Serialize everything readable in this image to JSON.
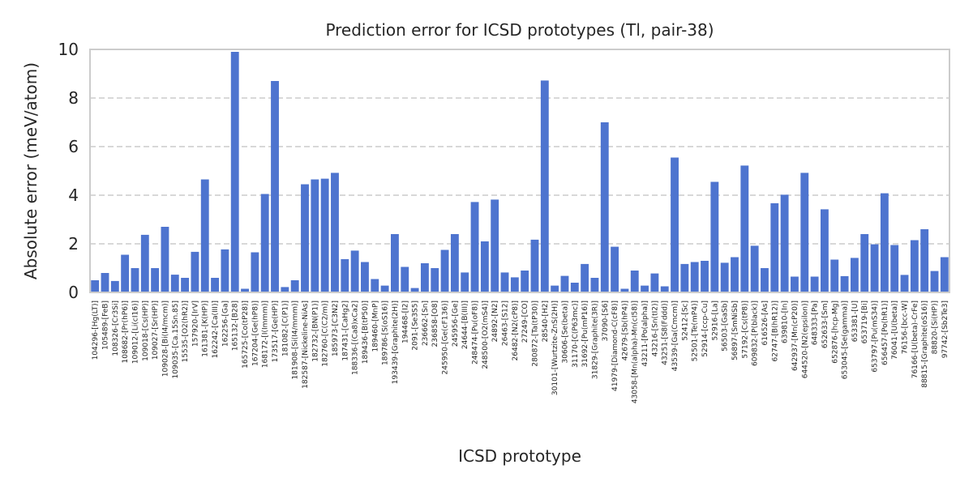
{
  "chart_data": {
    "type": "bar",
    "title": "Prediction error for ICSD prototypes (Tl, pair-38)",
    "xlabel": "ICSD prototype",
    "ylabel": "Absolute error (meV/atom)",
    "ylim": [
      0,
      10
    ],
    "yticks": [
      "0",
      "2",
      "4",
      "6",
      "8",
      "10"
    ],
    "grid": true,
    "bar_color": "#4e74cf",
    "categories": [
      "104296-[Hg(LT)]",
      "105489-[FeB]",
      "108326-[Cr3Si]",
      "108682-[Pr(hP6)]",
      "109012-[Li(cI16)]",
      "109018-[Cs(HP)]",
      "109027-[Sr(HP)]",
      "109028-[Bi(I4/mcm)]",
      "109035-[Ca.15Sn.85]",
      "15535-[O2(hR2)]",
      "157920-[IrV]",
      "161381-[K(HP)]",
      "162242-[Ca(III)]",
      "162256-[Ga]",
      "165132-[B28]",
      "165725-[Co(tP28)]",
      "167204-[Ge(hP8)]",
      "168172-[I(Immm)]",
      "173517-[Ge(HP)]",
      "181082-[C(P1)]",
      "181908-[Si(I4/mmm)]",
      "182587-[Nickeline-NiAs]",
      "182732-[BN(P1)]",
      "182760-[C(C2/m)]",
      "185973-[C3N2]",
      "187431-[CaHg2]",
      "188336-[(Ca8)xCa2]",
      "189436-[B(tP50)]",
      "189460-[MnP]",
      "189786-[S(oS16)]",
      "193439-[Graphite(2H)]",
      "194468-[I2]",
      "2091-[Se3S5]",
      "236662-[Sn]",
      "236858-[O8]",
      "245950-[Ge(cF136)]",
      "245956-[Ge]",
      "24644-[B(III)]",
      "248474-[Pu(oF8)]",
      "248500-[O2(mS4)]",
      "24892-[N2]",
      "26463-[S12]",
      "26482-[N2(cP8)]",
      "27249-[CO]",
      "280872-[Ta(tP30)]",
      "28540-[H2]",
      "30101-[Wurtzite-ZnS(2H)]",
      "30606-[Se(beta)]",
      "31170-[C(P63mc)]",
      "31692-[Pu(mP16)]",
      "31829-[Graphite(3R)]",
      "37090-[S6]",
      "41979-[Diamond-C(cF8)]",
      "42679-[Sb(hP4)]",
      "43058-[Mn(alpha)-Mn(cI58)]",
      "43211-[Po(alpha)]",
      "43216-[Sn(tI2)]",
      "43251-[S8(Fddd)]",
      "43539-[Ga(Cmcm)]",
      "52412-[Sc]",
      "52501-[Te(mP4)]",
      "52914-[ccp-Cu]",
      "52916-[La]",
      "56503-[GaSb]",
      "56897-[SmNiSb]",
      "57192-[Cs(tP8)]",
      "609832-[P(black)]",
      "616526-[As]",
      "62747-[B(hR12)]",
      "639810-[In]",
      "642937-[Mn(cP20)]",
      "644520-[N2(epsilon)]",
      "648333-[Pa]",
      "652633-[Sm]",
      "652876-[hcp-Mg]",
      "653045-[Se(gamma)]",
      "653381-[U]",
      "653719-[Bi]",
      "653797-[Pu(mS34)]",
      "656457-[Po(hR1)]",
      "76041-[U(beta)]",
      "76156-[bcc-W]",
      "76166-[U(beta)-CrFe]",
      "88815-[Graphite(oS16)]",
      "88820-[Si(HP)]",
      "97742-[Sb2Te3]"
    ],
    "values": [
      0.5,
      0.8,
      0.47,
      1.55,
      1.0,
      2.37,
      1.0,
      2.7,
      0.73,
      0.6,
      1.67,
      4.65,
      0.6,
      1.77,
      9.9,
      0.15,
      1.65,
      4.05,
      8.7,
      0.22,
      0.5,
      4.45,
      4.65,
      4.68,
      4.92,
      1.37,
      1.72,
      1.25,
      0.55,
      0.28,
      2.4,
      1.05,
      0.18,
      1.2,
      1.0,
      1.75,
      2.4,
      0.82,
      3.72,
      2.1,
      3.82,
      0.82,
      0.62,
      0.9,
      2.17,
      8.72,
      0.28,
      0.68,
      0.4,
      1.17,
      0.6,
      7.0,
      1.88,
      0.15,
      0.9,
      0.28,
      0.78,
      0.25,
      5.55,
      1.17,
      1.25,
      1.3,
      4.55,
      1.22,
      1.45,
      5.22,
      1.92,
      1.0,
      3.67,
      4.02,
      0.65,
      4.92,
      0.65,
      3.42,
      1.35,
      0.67,
      1.42,
      2.4,
      1.98,
      4.08,
      1.95,
      0.72,
      2.15,
      2.6,
      0.88,
      1.45
    ]
  }
}
